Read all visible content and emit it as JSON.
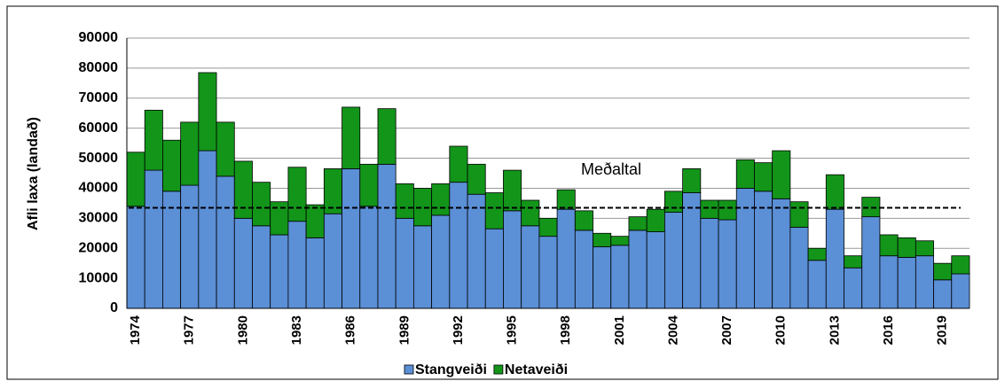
{
  "chart_data": {
    "type": "stacked_bar",
    "ylabel": "Afli laxa (landað)",
    "categories": [
      "1974",
      null,
      null,
      "1977",
      null,
      null,
      "1980",
      null,
      null,
      "1983",
      null,
      null,
      "1986",
      null,
      null,
      "1989",
      null,
      null,
      "1992",
      null,
      null,
      "1995",
      null,
      null,
      "1998",
      null,
      null,
      "2001",
      null,
      null,
      "2004",
      null,
      null,
      "2007",
      null,
      null,
      "2010",
      null,
      null,
      "2013",
      null,
      null,
      "2016",
      null,
      null,
      "2019",
      null
    ],
    "series": [
      {
        "name": "Stangveiði",
        "color": "#5b8fd6",
        "values": [
          34000,
          46000,
          39000,
          41000,
          52500,
          44000,
          30000,
          27500,
          24500,
          29000,
          23500,
          31500,
          46500,
          34000,
          48000,
          30000,
          27500,
          31000,
          42000,
          38000,
          26500,
          32500,
          27500,
          24000,
          33000,
          26000,
          20500,
          21000,
          26000,
          25500,
          32000,
          38500,
          30000,
          29500,
          40000,
          39000,
          36500,
          27000,
          16000,
          33000,
          13500,
          30500,
          17500,
          17000,
          17500,
          9500,
          11500
        ]
      },
      {
        "name": "Netaveiði",
        "color": "#13951a",
        "values": [
          18000,
          20000,
          17000,
          21000,
          26000,
          18000,
          19000,
          14500,
          11000,
          18000,
          11000,
          15000,
          20500,
          14000,
          18500,
          11500,
          12500,
          10500,
          12000,
          10000,
          12000,
          13500,
          8500,
          6000,
          6500,
          6500,
          4500,
          3000,
          4500,
          7500,
          7000,
          8000,
          6000,
          6500,
          9500,
          9500,
          16000,
          8500,
          4000,
          11500,
          4000,
          6500,
          7000,
          6500,
          5000,
          5500,
          6000
        ]
      }
    ],
    "reference_line": {
      "label": "Meðaltal",
      "value": 33500
    },
    "ylim": [
      0,
      90000
    ],
    "yticks": [
      0,
      10000,
      20000,
      30000,
      40000,
      50000,
      60000,
      70000,
      80000,
      90000
    ],
    "grid": true,
    "legend": "bottom"
  }
}
